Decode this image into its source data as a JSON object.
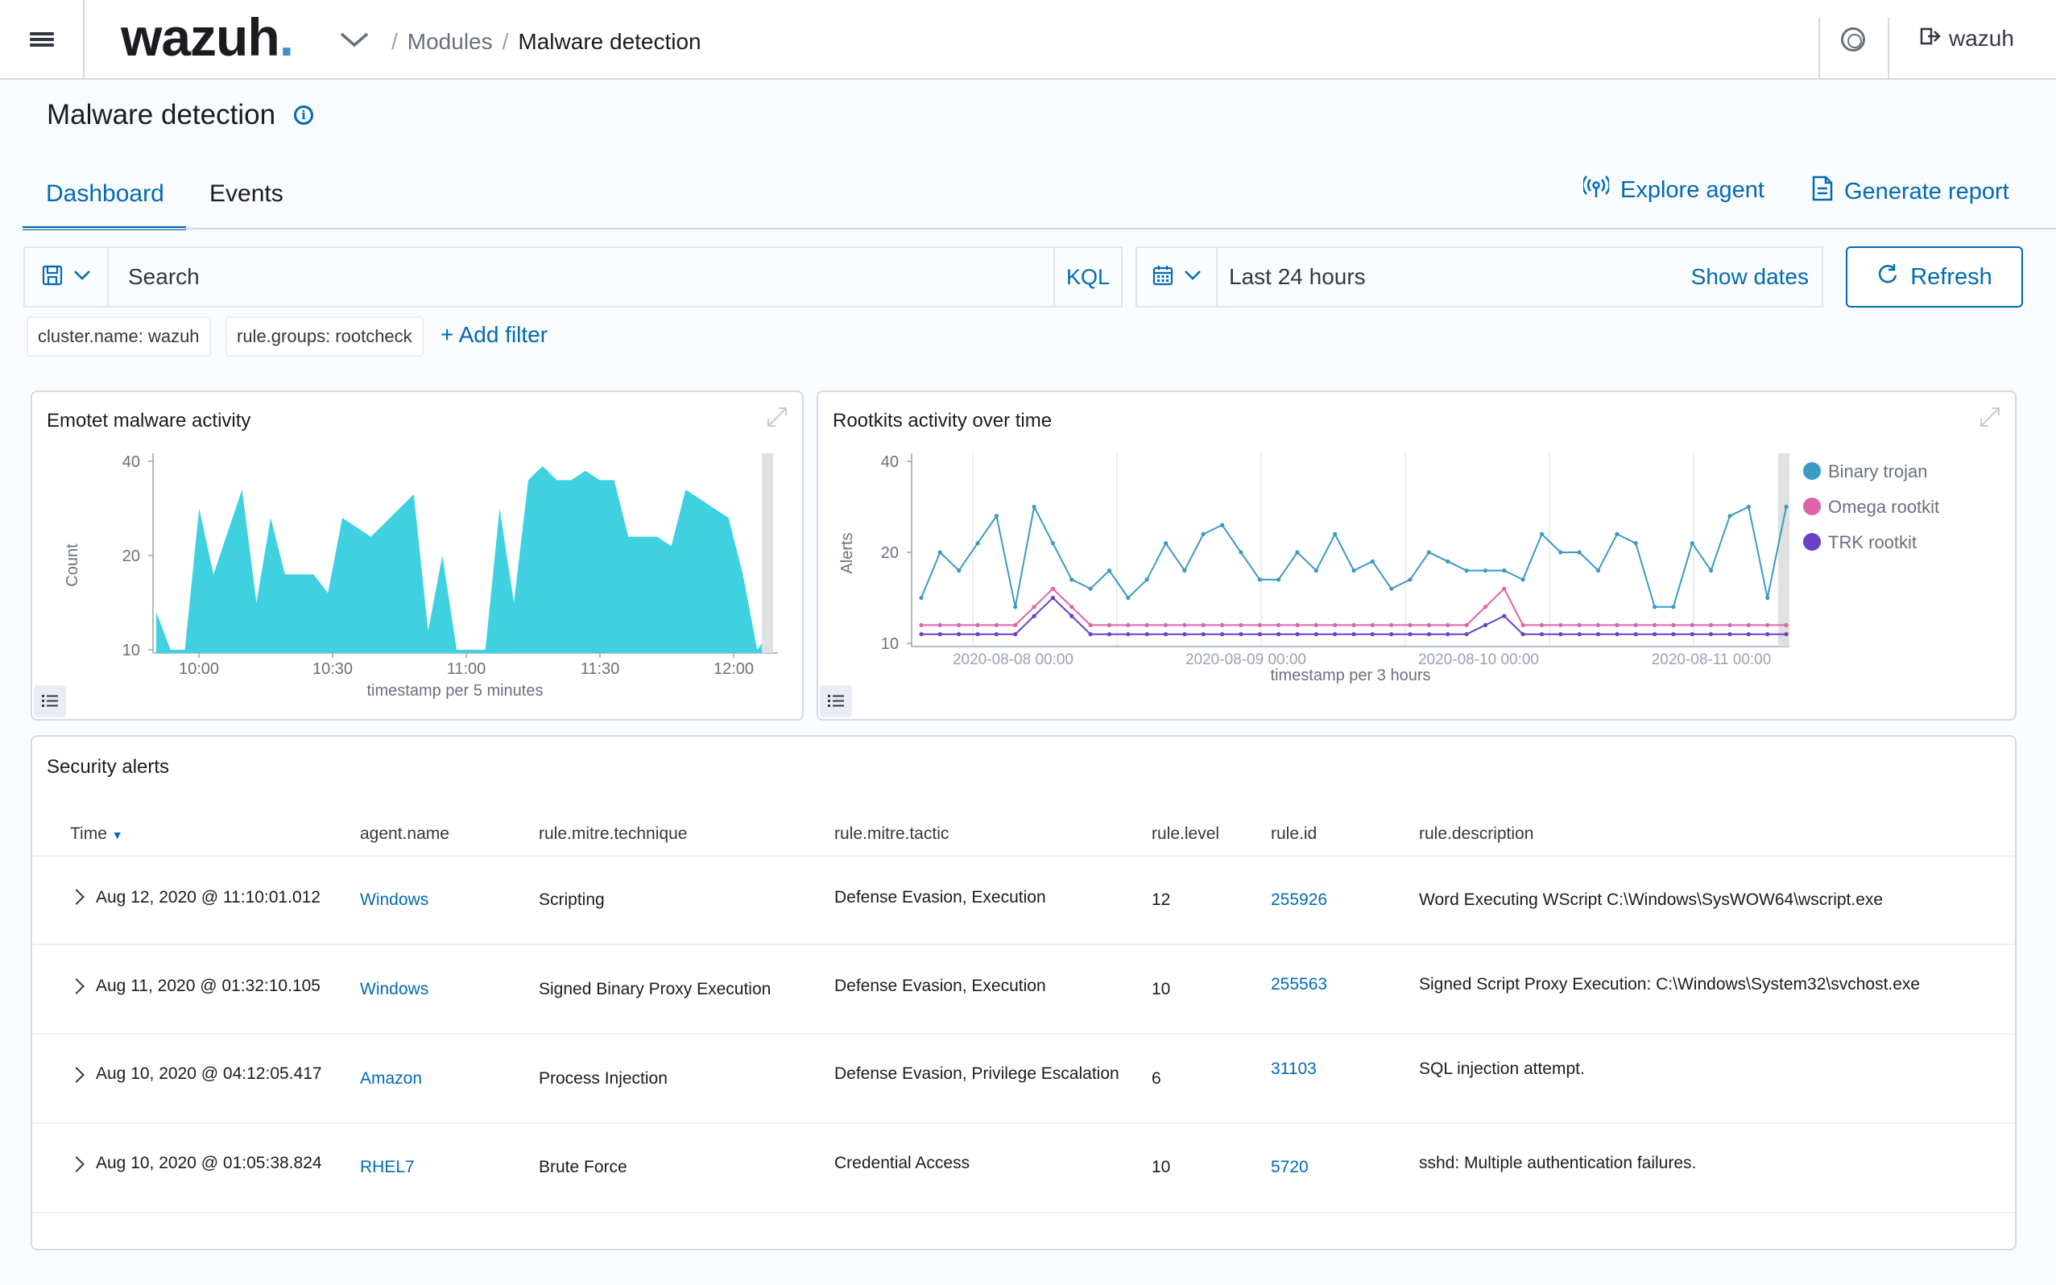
{
  "header": {
    "logo_text": "wazuh",
    "logo_dot": ".",
    "breadcrumb": [
      "Modules",
      "Malware detection"
    ],
    "user": "wazuh"
  },
  "page": {
    "title": "Malware detection",
    "tabs": [
      "Dashboard",
      "Events"
    ],
    "explore_agent": "Explore agent",
    "generate_report": "Generate report"
  },
  "search": {
    "placeholder": "Search",
    "kql": "KQL",
    "date_range": "Last 24 hours",
    "show_dates": "Show dates",
    "refresh": "Refresh"
  },
  "filters": [
    "cluster.name: wazuh",
    "rule.groups: rootcheck"
  ],
  "add_filter": "+ Add filter",
  "chart_data": [
    {
      "type": "area",
      "title": "Emotet malware activity",
      "xlabel": "timestamp per 5 minutes",
      "ylabel": "Count",
      "x_ticks": [
        "10:00",
        "10:30",
        "11:00",
        "11:30",
        "12:00"
      ],
      "y_ticks": [
        "10",
        "20",
        "40"
      ],
      "color": "#3fd1e0",
      "series": [
        {
          "values": [
            14,
            10,
            10,
            30,
            18,
            25,
            34,
            15,
            28,
            18,
            18,
            18,
            16,
            28,
            26,
            24,
            27,
            30,
            33,
            12,
            20,
            8,
            10,
            10,
            30,
            15,
            36,
            39,
            36,
            36,
            38,
            36,
            36,
            24,
            24,
            24,
            22,
            34,
            32,
            30,
            28,
            18,
            10,
            12
          ]
        }
      ]
    },
    {
      "type": "line",
      "title": "Rootkits activity over time",
      "xlabel": "timestamp per 3 hours",
      "ylabel": "Alerts",
      "x_ticks": [
        "2020-08-08 00:00",
        "2020-08-09 00:00",
        "2020-08-10 00:00",
        "2020-08-11 00:00"
      ],
      "y_ticks": [
        "10",
        "20",
        "40"
      ],
      "legend_position": "right",
      "series": [
        {
          "name": "Binary trojan",
          "color": "#3a9ac4",
          "values": [
            15,
            20,
            18,
            22,
            28,
            14,
            30,
            22,
            17,
            16,
            18,
            15,
            17,
            22,
            18,
            24,
            26,
            20,
            17,
            17,
            20,
            18,
            24,
            18,
            19,
            16,
            17,
            20,
            19,
            18,
            18,
            18,
            17,
            24,
            20,
            20,
            18,
            24,
            22,
            14,
            14,
            22,
            18,
            28,
            30,
            15,
            30
          ]
        },
        {
          "name": "Omega rootkit",
          "color": "#de63a9",
          "values": [
            12,
            12,
            12,
            12,
            12,
            12,
            14,
            16,
            14,
            12,
            12,
            12,
            12,
            12,
            12,
            12,
            12,
            12,
            12,
            12,
            12,
            12,
            12,
            12,
            12,
            12,
            12,
            12,
            12,
            12,
            14,
            16,
            12,
            12,
            12,
            12,
            12,
            12,
            12,
            12,
            12,
            12,
            12,
            12,
            12,
            12,
            12
          ]
        },
        {
          "name": "TRK rootkit",
          "color": "#6b3fc7",
          "values": [
            11,
            11,
            11,
            11,
            11,
            11,
            13,
            15,
            13,
            11,
            11,
            11,
            11,
            11,
            11,
            11,
            11,
            11,
            11,
            11,
            11,
            11,
            11,
            11,
            11,
            11,
            11,
            11,
            11,
            11,
            12,
            13,
            11,
            11,
            11,
            11,
            11,
            11,
            11,
            11,
            11,
            11,
            11,
            11,
            11,
            11,
            11
          ]
        }
      ]
    }
  ],
  "security_alerts": {
    "title": "Security alerts",
    "columns": [
      "Time",
      "agent.name",
      "rule.mitre.technique",
      "rule.mitre.tactic",
      "rule.level",
      "rule.id",
      "rule.description"
    ],
    "rows": [
      [
        "Aug 12, 2020 @ 11:10:01.012",
        "Windows",
        "Scripting",
        "Defense Evasion, Execution",
        "12",
        "255926",
        "Word Executing WScript C:\\Windows\\SysWOW64\\wscript.exe"
      ],
      [
        "Aug 11, 2020 @ 01:32:10.105",
        "Windows",
        "Signed Binary Proxy Execution",
        "Defense Evasion, Execution",
        "10",
        "255563",
        "Signed Script Proxy Execution: C:\\Windows\\System32\\svchost.exe"
      ],
      [
        "Aug 10, 2020 @ 04:12:05.417",
        "Amazon",
        "Process Injection",
        "Defense Evasion, Privilege Escalation",
        "6",
        "31103",
        "SQL injection attempt."
      ],
      [
        "Aug 10, 2020 @ 01:05:38.824",
        "RHEL7",
        "Brute Force",
        "Credential Access",
        "10",
        "5720",
        "sshd: Multiple authentication failures."
      ]
    ]
  }
}
